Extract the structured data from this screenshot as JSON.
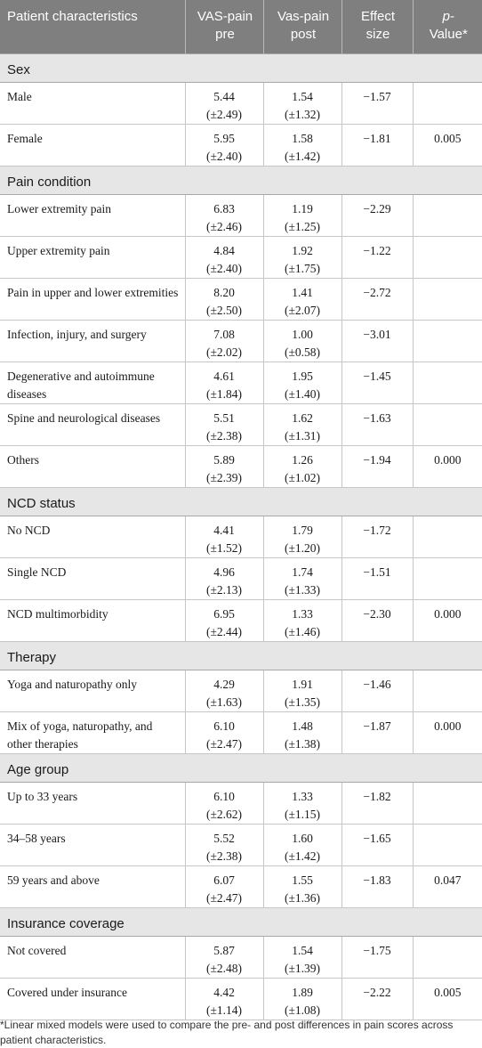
{
  "headers": {
    "col1": "Patient characteristics",
    "col2": "VAS-pain pre",
    "col3": "Vas-pain post",
    "col4": "Effect size",
    "col5_italic": "p-",
    "col5_rest": "Value*"
  },
  "sections": [
    {
      "title": "Sex",
      "rows": [
        {
          "label": "Male",
          "pre_mean": "5.44",
          "pre_sd": "(±2.49)",
          "post_mean": "1.54",
          "post_sd": "(±1.32)",
          "effect": "−1.57",
          "p": ""
        },
        {
          "label": "Female",
          "pre_mean": "5.95",
          "pre_sd": "(±2.40)",
          "post_mean": "1.58",
          "post_sd": "(±1.42)",
          "effect": "−1.81",
          "p": "0.005"
        }
      ]
    },
    {
      "title": "Pain condition",
      "rows": [
        {
          "label": "Lower extremity pain",
          "pre_mean": "6.83",
          "pre_sd": "(±2.46)",
          "post_mean": "1.19",
          "post_sd": "(±1.25)",
          "effect": "−2.29",
          "p": ""
        },
        {
          "label": "Upper extremity pain",
          "pre_mean": "4.84",
          "pre_sd": "(±2.40)",
          "post_mean": "1.92",
          "post_sd": "(±1.75)",
          "effect": "−1.22",
          "p": ""
        },
        {
          "label": "Pain in upper and lower extremities",
          "pre_mean": "8.20",
          "pre_sd": "(±2.50)",
          "post_mean": "1.41",
          "post_sd": "(±2.07)",
          "effect": "−2.72",
          "p": ""
        },
        {
          "label": "Infection, injury, and surgery",
          "pre_mean": "7.08",
          "pre_sd": "(±2.02)",
          "post_mean": "1.00",
          "post_sd": "(±0.58)",
          "effect": "−3.01",
          "p": ""
        },
        {
          "label": "Degenerative and autoimmune diseases",
          "pre_mean": "4.61",
          "pre_sd": "(±1.84)",
          "post_mean": "1.95",
          "post_sd": "(±1.40)",
          "effect": "−1.45",
          "p": ""
        },
        {
          "label": "Spine and neurological diseases",
          "pre_mean": "5.51",
          "pre_sd": "(±2.38)",
          "post_mean": "1.62",
          "post_sd": "(±1.31)",
          "effect": "−1.63",
          "p": ""
        },
        {
          "label": "Others",
          "pre_mean": "5.89",
          "pre_sd": "(±2.39)",
          "post_mean": "1.26",
          "post_sd": "(±1.02)",
          "effect": "−1.94",
          "p": "0.000"
        }
      ]
    },
    {
      "title": "NCD status",
      "rows": [
        {
          "label": "No NCD",
          "pre_mean": "4.41",
          "pre_sd": "(±1.52)",
          "post_mean": "1.79",
          "post_sd": "(±1.20)",
          "effect": "−1.72",
          "p": ""
        },
        {
          "label": "Single NCD",
          "pre_mean": "4.96",
          "pre_sd": "(±2.13)",
          "post_mean": "1.74",
          "post_sd": "(±1.33)",
          "effect": "−1.51",
          "p": ""
        },
        {
          "label": "NCD multimorbidity",
          "pre_mean": "6.95",
          "pre_sd": "(±2.44)",
          "post_mean": "1.33",
          "post_sd": "(±1.46)",
          "effect": "−2.30",
          "p": "0.000"
        }
      ]
    },
    {
      "title": "Therapy",
      "rows": [
        {
          "label": "Yoga and naturopathy only",
          "pre_mean": "4.29",
          "pre_sd": "(±1.63)",
          "post_mean": "1.91",
          "post_sd": "(±1.35)",
          "effect": "−1.46",
          "p": ""
        },
        {
          "label": "Mix of yoga, naturopathy, and other therapies",
          "pre_mean": "6.10",
          "pre_sd": "(±2.47)",
          "post_mean": "1.48",
          "post_sd": "(±1.38)",
          "effect": "−1.87",
          "p": "0.000"
        }
      ]
    },
    {
      "title": "Age group",
      "rows": [
        {
          "label": "Up to 33 years",
          "pre_mean": "6.10",
          "pre_sd": "(±2.62)",
          "post_mean": "1.33",
          "post_sd": "(±1.15)",
          "effect": "−1.82",
          "p": ""
        },
        {
          "label": "34–58 years",
          "pre_mean": "5.52",
          "pre_sd": "(±2.38)",
          "post_mean": "1.60",
          "post_sd": "(±1.42)",
          "effect": "−1.65",
          "p": ""
        },
        {
          "label": "59 years and above",
          "pre_mean": "6.07",
          "pre_sd": "(±2.47)",
          "post_mean": "1.55",
          "post_sd": "(±1.36)",
          "effect": "−1.83",
          "p": "0.047"
        }
      ]
    },
    {
      "title": "Insurance coverage",
      "rows": [
        {
          "label": "Not covered",
          "pre_mean": "5.87",
          "pre_sd": "(±2.48)",
          "post_mean": "1.54",
          "post_sd": "(±1.39)",
          "effect": "−1.75",
          "p": ""
        },
        {
          "label": "Covered under insurance",
          "pre_mean": "4.42",
          "pre_sd": "(±1.14)",
          "post_mean": "1.89",
          "post_sd": "(±1.08)",
          "effect": "−2.22",
          "p": "0.005"
        }
      ]
    }
  ],
  "footnote": "*Linear mixed models were used to compare the pre- and post differences in pain scores across patient characteristics."
}
